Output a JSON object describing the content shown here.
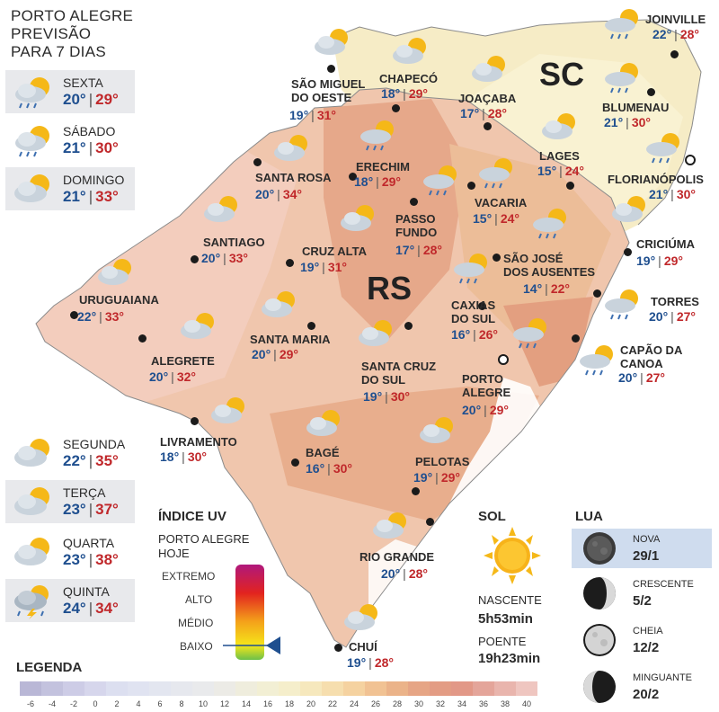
{
  "header": {
    "line1": "PORTO ALEGRE",
    "line2": "PREVISÃO",
    "line3": "PARA 7 DIAS"
  },
  "forecast": [
    {
      "day": "SEXTA",
      "min": "20°",
      "max": "29°",
      "icon": "sun-cloud-rain-icon"
    },
    {
      "day": "SÁBADO",
      "min": "21°",
      "max": "30°",
      "icon": "sun-cloud-rain-icon"
    },
    {
      "day": "DOMINGO",
      "min": "21°",
      "max": "33°",
      "icon": "sun-cloud-icon"
    },
    {
      "day": "SEGUNDA",
      "min": "22°",
      "max": "35°",
      "icon": "sun-cloud-icon"
    },
    {
      "day": "TERÇA",
      "min": "23°",
      "max": "37°",
      "icon": "sun-cloud-icon"
    },
    {
      "day": "QUARTA",
      "min": "23°",
      "max": "38°",
      "icon": "sun-cloud-icon"
    },
    {
      "day": "QUINTA",
      "min": "24°",
      "max": "34°",
      "icon": "storm-icon"
    }
  ],
  "states": {
    "sc": "SC",
    "rs": "RS"
  },
  "cities": [
    {
      "name": "JOINVILLE",
      "min": "22°",
      "max": "28°"
    },
    {
      "name": "CHAPECÓ",
      "min": "18°",
      "max": "29°"
    },
    {
      "name": "SÃO MIGUEL DO OESTE",
      "line1": "SÃO MIGUEL",
      "line2": "DO OESTE",
      "min": "19°",
      "max": "31°"
    },
    {
      "name": "JOAÇABA",
      "min": "17°",
      "max": "28°"
    },
    {
      "name": "BLUMENAU",
      "min": "21°",
      "max": "30°"
    },
    {
      "name": "LAGES",
      "min": "15°",
      "max": "24°"
    },
    {
      "name": "FLORIANÓPOLIS",
      "min": "21°",
      "max": "30°"
    },
    {
      "name": "ERECHIM",
      "min": "18°",
      "max": "29°"
    },
    {
      "name": "SANTA ROSA",
      "min": "20°",
      "max": "34°"
    },
    {
      "name": "VACARIA",
      "min": "15°",
      "max": "24°"
    },
    {
      "name": "PASSO FUNDO",
      "line1": "PASSO",
      "line2": "FUNDO",
      "min": "17°",
      "max": "28°"
    },
    {
      "name": "CRICIÚMA",
      "min": "19°",
      "max": "29°"
    },
    {
      "name": "SANTIAGO",
      "min": "20°",
      "max": "33°"
    },
    {
      "name": "CRUZ ALTA",
      "min": "19°",
      "max": "31°"
    },
    {
      "name": "SÃO JOSÉ DOS AUSENTES",
      "line1": "SÃO JOSÉ",
      "line2": "DOS AUSENTES",
      "min": "14°",
      "max": "22°"
    },
    {
      "name": "URUGUAIANA",
      "min": "22°",
      "max": "33°"
    },
    {
      "name": "CAXIAS DO SUL",
      "line1": "CAXIAS",
      "line2": "DO SUL",
      "min": "16°",
      "max": "26°"
    },
    {
      "name": "TORRES",
      "min": "20°",
      "max": "27°"
    },
    {
      "name": "SANTA MARIA",
      "min": "20°",
      "max": "29°"
    },
    {
      "name": "ALEGRETE",
      "min": "20°",
      "max": "32°"
    },
    {
      "name": "CAPÃO DA CANOA",
      "line1": "CAPÃO DA",
      "line2": "CANOA",
      "min": "20°",
      "max": "27°"
    },
    {
      "name": "SANTA CRUZ DO SUL",
      "line1": "SANTA CRUZ",
      "line2": "DO SUL",
      "min": "19°",
      "max": "30°"
    },
    {
      "name": "PORTO ALEGRE",
      "line1": "PORTO",
      "line2": "ALEGRE",
      "min": "20°",
      "max": "29°"
    },
    {
      "name": "LIVRAMENTO",
      "min": "18°",
      "max": "30°"
    },
    {
      "name": "BAGÉ",
      "min": "16°",
      "max": "30°"
    },
    {
      "name": "PELOTAS",
      "min": "19°",
      "max": "29°"
    },
    {
      "name": "RIO GRANDE",
      "min": "20°",
      "max": "28°"
    },
    {
      "name": "CHUÍ",
      "min": "19°",
      "max": "28°"
    }
  ],
  "uv": {
    "title": "ÍNDICE UV",
    "subtitle1": "PORTO ALEGRE",
    "subtitle2": "HOJE",
    "levels": [
      "EXTREMO",
      "ALTO",
      "MÉDIO",
      "BAIXO"
    ],
    "today_level": "BAIXO"
  },
  "sun": {
    "title": "SOL",
    "sunrise_label": "NASCENTE",
    "sunrise": "5h53min",
    "sunset_label": "POENTE",
    "sunset": "19h23min"
  },
  "moon": {
    "title": "LUA",
    "phases": [
      {
        "name": "NOVA",
        "date": "29/1"
      },
      {
        "name": "CRESCENTE",
        "date": "5/2"
      },
      {
        "name": "CHEIA",
        "date": "12/2"
      },
      {
        "name": "MINGUANTE",
        "date": "20/2"
      }
    ]
  },
  "legend": {
    "title": "LEGENDA",
    "ticks": [
      "-6",
      "-4",
      "-2",
      "0",
      "2",
      "4",
      "6",
      "8",
      "10",
      "12",
      "14",
      "16",
      "18",
      "20",
      "22",
      "24",
      "26",
      "28",
      "30",
      "32",
      "34",
      "36",
      "38",
      "40"
    ],
    "colors": [
      "#b9b7d6",
      "#c3c2de",
      "#cdcce6",
      "#d6d6ec",
      "#dcdff0",
      "#e0e3f1",
      "#e3e6f0",
      "#e6e8ee",
      "#e9eaec",
      "#ecebe6",
      "#efeddd",
      "#f2efd4",
      "#f5eecb",
      "#f6e8bd",
      "#f6deae",
      "#f5d2a0",
      "#f1c293",
      "#ebb389",
      "#e6a585",
      "#e39c84",
      "#e29887",
      "#e4a59a",
      "#e9b5ad",
      "#efc6c0"
    ]
  },
  "colors": {
    "min_temp": "#1f4f8f",
    "max_temp": "#c0282b"
  }
}
